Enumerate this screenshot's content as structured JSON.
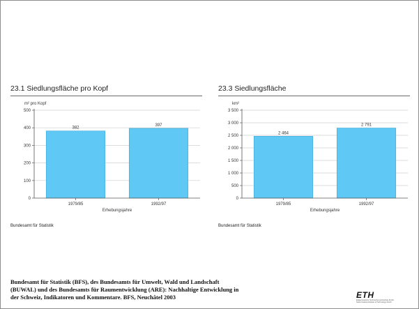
{
  "chart_data": [
    {
      "type": "bar",
      "title": "23.1 Siedlungsfläche pro Kopf",
      "ylabel": "m² pro Kopf",
      "xlabel": "Erhebungsjahre",
      "categories": [
        "1979/85",
        "1992/97"
      ],
      "values": [
        382,
        397
      ],
      "value_labels": [
        "382",
        "397"
      ],
      "ylim": [
        0,
        500
      ],
      "yticks": [
        0,
        100,
        200,
        300,
        400,
        500
      ],
      "ytick_labels": [
        "0",
        "100",
        "200",
        "300",
        "400",
        "500"
      ],
      "grid": true,
      "source": "Bundesamt für Statistik"
    },
    {
      "type": "bar",
      "title": "23.3 Siedlungsfläche",
      "ylabel": "km²",
      "xlabel": "Erhebungsjahre",
      "categories": [
        "1979/85",
        "1992/97"
      ],
      "values": [
        2464,
        2791
      ],
      "value_labels": [
        "2 464",
        "2 791"
      ],
      "ylim": [
        0,
        3500
      ],
      "yticks": [
        0,
        500,
        1000,
        1500,
        2000,
        2500,
        3000,
        3500
      ],
      "ytick_labels": [
        "0",
        "500",
        "1 000",
        "1 500",
        "2 000",
        "2 500",
        "3 000",
        "3 500"
      ],
      "grid": true,
      "source": "Bundesamt für Statistik"
    }
  ],
  "colors": {
    "bar": "#5fc8f4",
    "bar_edge": "#3fa9d6",
    "grid": "#cfcfcf",
    "axis": "#555555"
  },
  "citation": {
    "line1": "Bundesamt für Statistik (BFS), des Bundesamts für Umwelt, Wald und Landschaft",
    "line2": "(BUWAL) und des Bundesamts für Raumentwicklung (ARE): Nachhaltige Entwicklung in",
    "line3": "der Schweiz, Indikatoren und Kommentare. BFS, Neuchâtel 2003"
  },
  "logo": {
    "mark": "ETH",
    "line1": "Eidgenössische Technische Hochschule Zürich",
    "line2": "Swiss Federal Institute of Technology Zurich"
  }
}
